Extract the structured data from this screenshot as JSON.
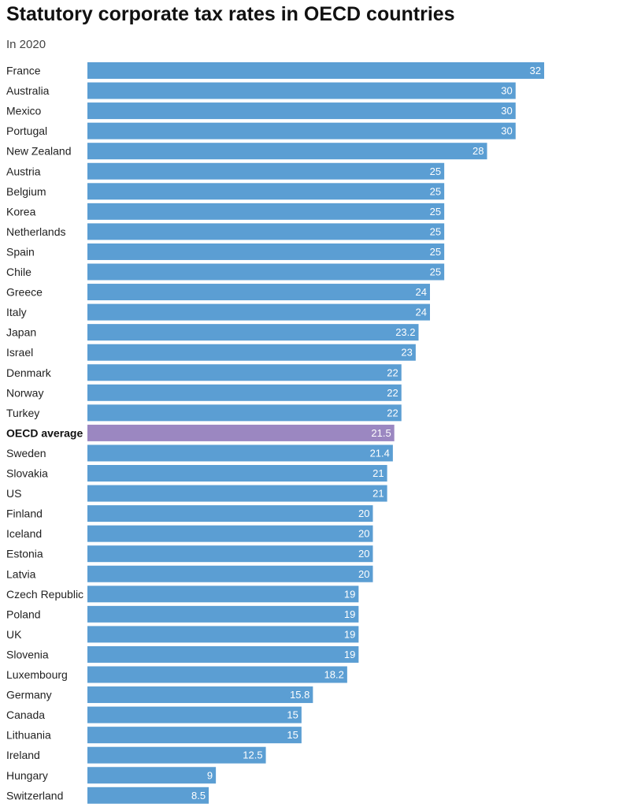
{
  "chart_data": {
    "type": "bar",
    "orientation": "horizontal",
    "title": "Statutory corporate tax rates in OECD countries",
    "subtitle": "In 2020",
    "categories": [
      "France",
      "Australia",
      "Mexico",
      "Portugal",
      "New Zealand",
      "Austria",
      "Belgium",
      "Korea",
      "Netherlands",
      "Spain",
      "Chile",
      "Greece",
      "Italy",
      "Japan",
      "Israel",
      "Denmark",
      "Norway",
      "Turkey",
      "OECD average",
      "Sweden",
      "Slovakia",
      "US",
      "Finland",
      "Iceland",
      "Estonia",
      "Latvia",
      "Czech Republic",
      "Poland",
      "UK",
      "Slovenia",
      "Luxembourg",
      "Germany",
      "Canada",
      "Lithuania",
      "Ireland",
      "Hungary",
      "Switzerland"
    ],
    "values": [
      32,
      30,
      30,
      30,
      28,
      25,
      25,
      25,
      25,
      25,
      25,
      24,
      24,
      23.2,
      23,
      22,
      22,
      22,
      21.5,
      21.4,
      21,
      21,
      20,
      20,
      20,
      20,
      19,
      19,
      19,
      19,
      18.2,
      15.8,
      15,
      15,
      12.5,
      9,
      8.5
    ],
    "highlight": "OECD average",
    "colors": {
      "bar": "#5b9ed3",
      "highlight": "#9b87c1",
      "value_text": "#ffffff"
    },
    "xlim": [
      0,
      32
    ],
    "grid": false,
    "legend": "none"
  }
}
